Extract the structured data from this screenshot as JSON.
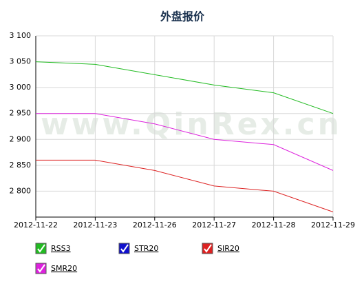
{
  "chart_data": {
    "type": "line",
    "title": "外盘报价",
    "watermark": "www.QinRex.cn",
    "categories": [
      "2012-11-22",
      "2012-11-23",
      "2012-11-26",
      "2012-11-27",
      "2012-11-28",
      "2012-11-29"
    ],
    "series": [
      {
        "name": "RSS3",
        "color": "#22bb22",
        "values": [
          3050,
          3045,
          3025,
          3005,
          2990,
          2950
        ]
      },
      {
        "name": "STR20",
        "color": "#1111cc",
        "values": [
          null,
          null,
          null,
          null,
          null,
          null
        ]
      },
      {
        "name": "SIR20",
        "color": "#dd2222",
        "values": [
          2860,
          2860,
          2840,
          2810,
          2800,
          2760
        ]
      },
      {
        "name": "SMR20",
        "color": "#dd22dd",
        "values": [
          2950,
          2950,
          2930,
          2900,
          2890,
          2840
        ]
      }
    ],
    "ylim": [
      2750,
      3100
    ],
    "yticks": [
      {
        "value": 2800,
        "label": "2 800"
      },
      {
        "value": 2850,
        "label": "2 850"
      },
      {
        "value": 2900,
        "label": "2 900"
      },
      {
        "value": 2950,
        "label": "2 950"
      },
      {
        "value": 3000,
        "label": "3 000"
      },
      {
        "value": 3050,
        "label": "3 050"
      },
      {
        "value": 3100,
        "label": "3 100"
      }
    ],
    "grid": true
  }
}
